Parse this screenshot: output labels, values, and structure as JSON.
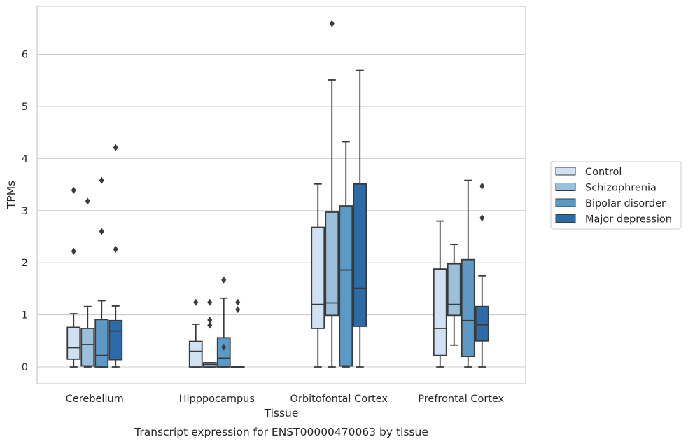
{
  "chart_data": {
    "type": "box",
    "title": "",
    "caption": "Transcript expression for ENST00000470063 by tissue",
    "xlabel": "Tissue",
    "ylabel": "TPMs",
    "ylim": [
      -0.32,
      6.9
    ],
    "yticks": [
      0,
      1,
      2,
      3,
      4,
      5,
      6
    ],
    "grid": true,
    "legend_position": "right",
    "categories": [
      "Cerebellum",
      "Hipppocampus",
      "Orbitofontal Cortex",
      "Prefrontal Cortex"
    ],
    "series": [
      {
        "name": "Control",
        "color": "#d0e1f2",
        "boxes": [
          {
            "whislo": 0,
            "q1": 0.15,
            "med": 0.37,
            "q3": 0.76,
            "whishi": 1.02,
            "fliers": [
              2.22,
              3.39
            ]
          },
          {
            "whislo": 0,
            "q1": 0,
            "med": 0.3,
            "q3": 0.49,
            "whishi": 0.82,
            "fliers": [
              1.24
            ]
          },
          {
            "whislo": 0,
            "q1": 0.74,
            "med": 1.2,
            "q3": 2.68,
            "whishi": 3.51,
            "fliers": []
          },
          {
            "whislo": 0,
            "q1": 0.22,
            "med": 0.74,
            "q3": 1.88,
            "whishi": 2.8,
            "fliers": []
          }
        ]
      },
      {
        "name": "Schizophrenia",
        "color": "#9ac0dd",
        "boxes": [
          {
            "whislo": 0,
            "q1": 0.02,
            "med": 0.43,
            "q3": 0.74,
            "whishi": 1.16,
            "fliers": [
              3.18
            ]
          },
          {
            "whislo": 0,
            "q1": 0,
            "med": 0.05,
            "q3": 0.08,
            "whishi": 0.08,
            "fliers": [
              0.8,
              0.9,
              1.24
            ]
          },
          {
            "whislo": 0,
            "q1": 0.99,
            "med": 1.23,
            "q3": 2.97,
            "whishi": 5.51,
            "fliers": [
              6.59
            ]
          },
          {
            "whislo": 0.42,
            "q1": 0.99,
            "med": 1.2,
            "q3": 1.98,
            "whishi": 2.35,
            "fliers": []
          }
        ]
      },
      {
        "name": "Bipolar disorder",
        "color": "#5b9ac6",
        "boxes": [
          {
            "whislo": 0,
            "q1": 0,
            "med": 0.22,
            "q3": 0.91,
            "whishi": 1.27,
            "fliers": [
              2.6,
              3.58
            ]
          },
          {
            "whislo": 0,
            "q1": 0,
            "med": 0.17,
            "q3": 0.56,
            "whishi": 1.32,
            "fliers": [
              0.38,
              1.67
            ]
          },
          {
            "whislo": 0,
            "q1": 0.02,
            "med": 1.86,
            "q3": 3.09,
            "whishi": 4.32,
            "fliers": []
          },
          {
            "whislo": 0,
            "q1": 0.2,
            "med": 0.89,
            "q3": 2.06,
            "whishi": 3.58,
            "fliers": []
          }
        ]
      },
      {
        "name": "Major depression",
        "color": "#2c6ba8",
        "boxes": [
          {
            "whislo": 0,
            "q1": 0.14,
            "med": 0.69,
            "q3": 0.89,
            "whishi": 1.17,
            "fliers": [
              2.26,
              4.21
            ]
          },
          {
            "whislo": 0,
            "q1": 0,
            "med": 0,
            "q3": 0,
            "whishi": 0,
            "fliers": [
              1.1,
              1.24
            ]
          },
          {
            "whislo": 0,
            "q1": 0.78,
            "med": 1.51,
            "q3": 3.51,
            "whishi": 5.69,
            "fliers": []
          },
          {
            "whislo": 0,
            "q1": 0.5,
            "med": 0.81,
            "q3": 1.16,
            "whishi": 1.75,
            "fliers": [
              2.86,
              3.47
            ]
          }
        ]
      }
    ]
  }
}
